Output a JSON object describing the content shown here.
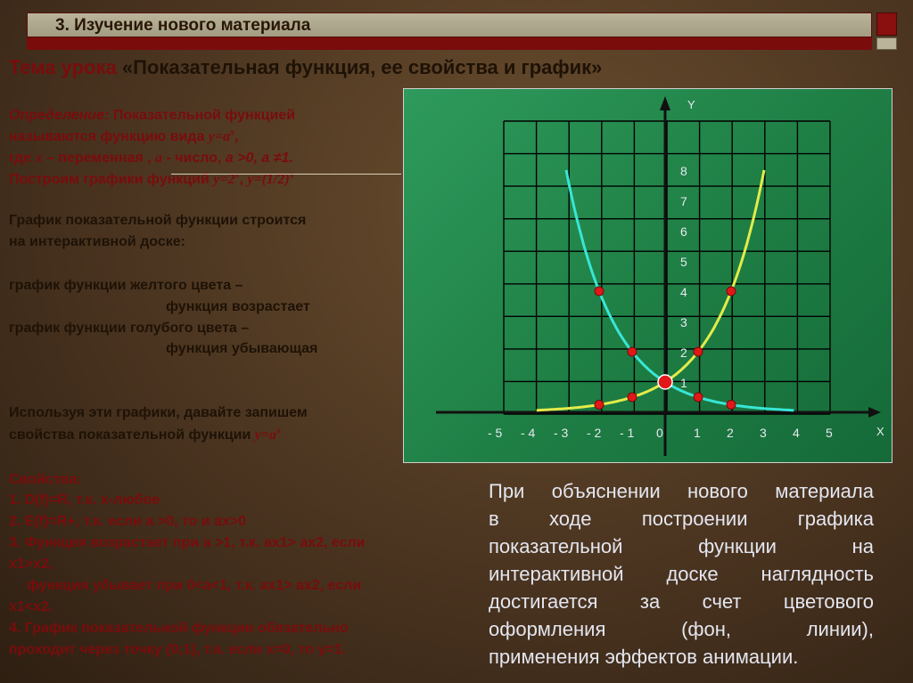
{
  "header": {
    "title": "3. Изучение нового материала"
  },
  "lesson": {
    "label": "Тема урока",
    "title": "«Показательная функция, ее свойства и график»"
  },
  "definition": {
    "label": "Определение:",
    "line1_text": " Показательной функцией",
    "line2_text": "называются функцию вида ",
    "line2_formula": "y=a",
    "line2_sup": "x",
    "line2_end": ",",
    "line3_start": "где ",
    "line3_x": "x",
    "line3_mid": " – переменная , ",
    "line3_a": "a",
    "line3_mid2": " - число, ",
    "line3_cond1": "a >0,  a ≠1.",
    "line4_text": "Построим графики функций ",
    "line4_f1": "y=2",
    "line4_f1_sup": "x",
    "line4_sep": ",  ",
    "line4_f2": "y=(1/2)",
    "line4_f2_sup": "x"
  },
  "info": {
    "line1": "График показательной функции строится",
    "line2": "на интерактивной доске:",
    "yellow1": "график функции желтого цвета –",
    "yellow2": "функция возрастает",
    "blue1": "график функции голубого цвета –",
    "blue2": "функция убывающая",
    "use1": "Используя эти графики, давайте запишем",
    "use2": " свойства показательной функции  ",
    "use2_formula": "y=a",
    "use2_sup": "x"
  },
  "properties": {
    "title": "Свойства:",
    "p1": "1. D(f)=R, т.к. х-любое",
    "p2": "2. E(f)=R+, т.к. если a >0, то и ax>0",
    "p3a": "3. Функция возрастает при a >1, т.к. ax1> ax2, если",
    "p3b": "x1>x2,",
    "p3c": "функция убывает при 0<a<1, т.к. ax1> ax2, если",
    "p3d": "x1<x2.",
    "p4a": "4. График показательной функции обязательно",
    "p4b": "проходит через точку (0;1), т.к. если х=0, то у=1."
  },
  "note": {
    "lines": [
      "При объяснении нового материала",
      "в ходе построении графика",
      "показательной функции на",
      "интерактивной доске наглядность",
      "достигается за счет цветового",
      "оформления (фон, линии),",
      "применения эффектов анимации."
    ]
  },
  "chart_data": {
    "type": "line",
    "xlabel": "X",
    "ylabel": "Y",
    "x_tick_labels": [
      "- 5",
      "- 4",
      "- 3",
      "- 2",
      "- 1",
      "0",
      "1",
      "2",
      "3",
      "4",
      "5"
    ],
    "y_tick_labels": [
      "1",
      "2",
      "3",
      "4",
      "5",
      "6",
      "7",
      "8"
    ],
    "series": [
      {
        "color": "#e3ec4a",
        "points": [
          [
            -2,
            0.25
          ],
          [
            -1,
            0.5
          ],
          [
            0,
            1
          ],
          [
            1,
            2
          ],
          [
            2,
            4
          ]
        ]
      },
      {
        "color": "#38e6d6",
        "points": [
          [
            -2,
            4
          ],
          [
            -1,
            2
          ],
          [
            0,
            1
          ],
          [
            1,
            0.5
          ],
          [
            2,
            0.25
          ]
        ]
      }
    ],
    "marker_color": "#e01818",
    "grid": true,
    "colors": {
      "background": "#1e7e44",
      "grid": "#000000"
    }
  }
}
